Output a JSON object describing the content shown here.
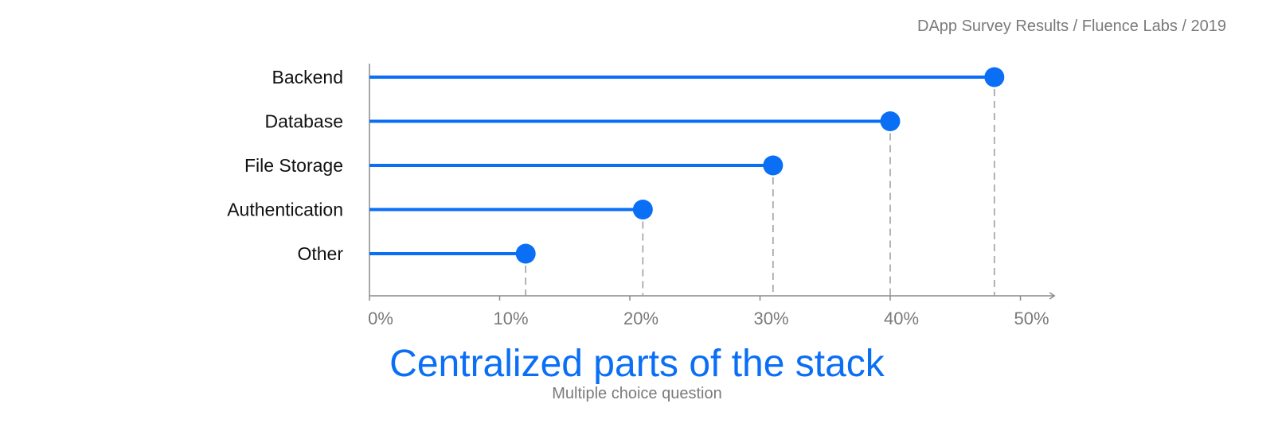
{
  "source": "DApp Survey Results / Fluence Labs / 2019",
  "chart_data": {
    "type": "lollipop-bar",
    "orientation": "horizontal",
    "title": "Centralized parts of the stack",
    "subtitle": "Multiple choice question",
    "categories": [
      "Backend",
      "Database",
      "File Storage",
      "Authentication",
      "Other"
    ],
    "values": [
      48,
      40,
      31,
      21,
      12
    ],
    "unit": "%",
    "xlim": [
      0,
      52
    ],
    "xticks": [
      0,
      10,
      20,
      30,
      40,
      50
    ],
    "xtick_labels": [
      "0%",
      "10%",
      "20%",
      "30%",
      "40%",
      "50%"
    ],
    "xlabel": "",
    "ylabel": "",
    "grid": false,
    "dashed_drop_lines": true,
    "color": "#0a6ff5"
  }
}
